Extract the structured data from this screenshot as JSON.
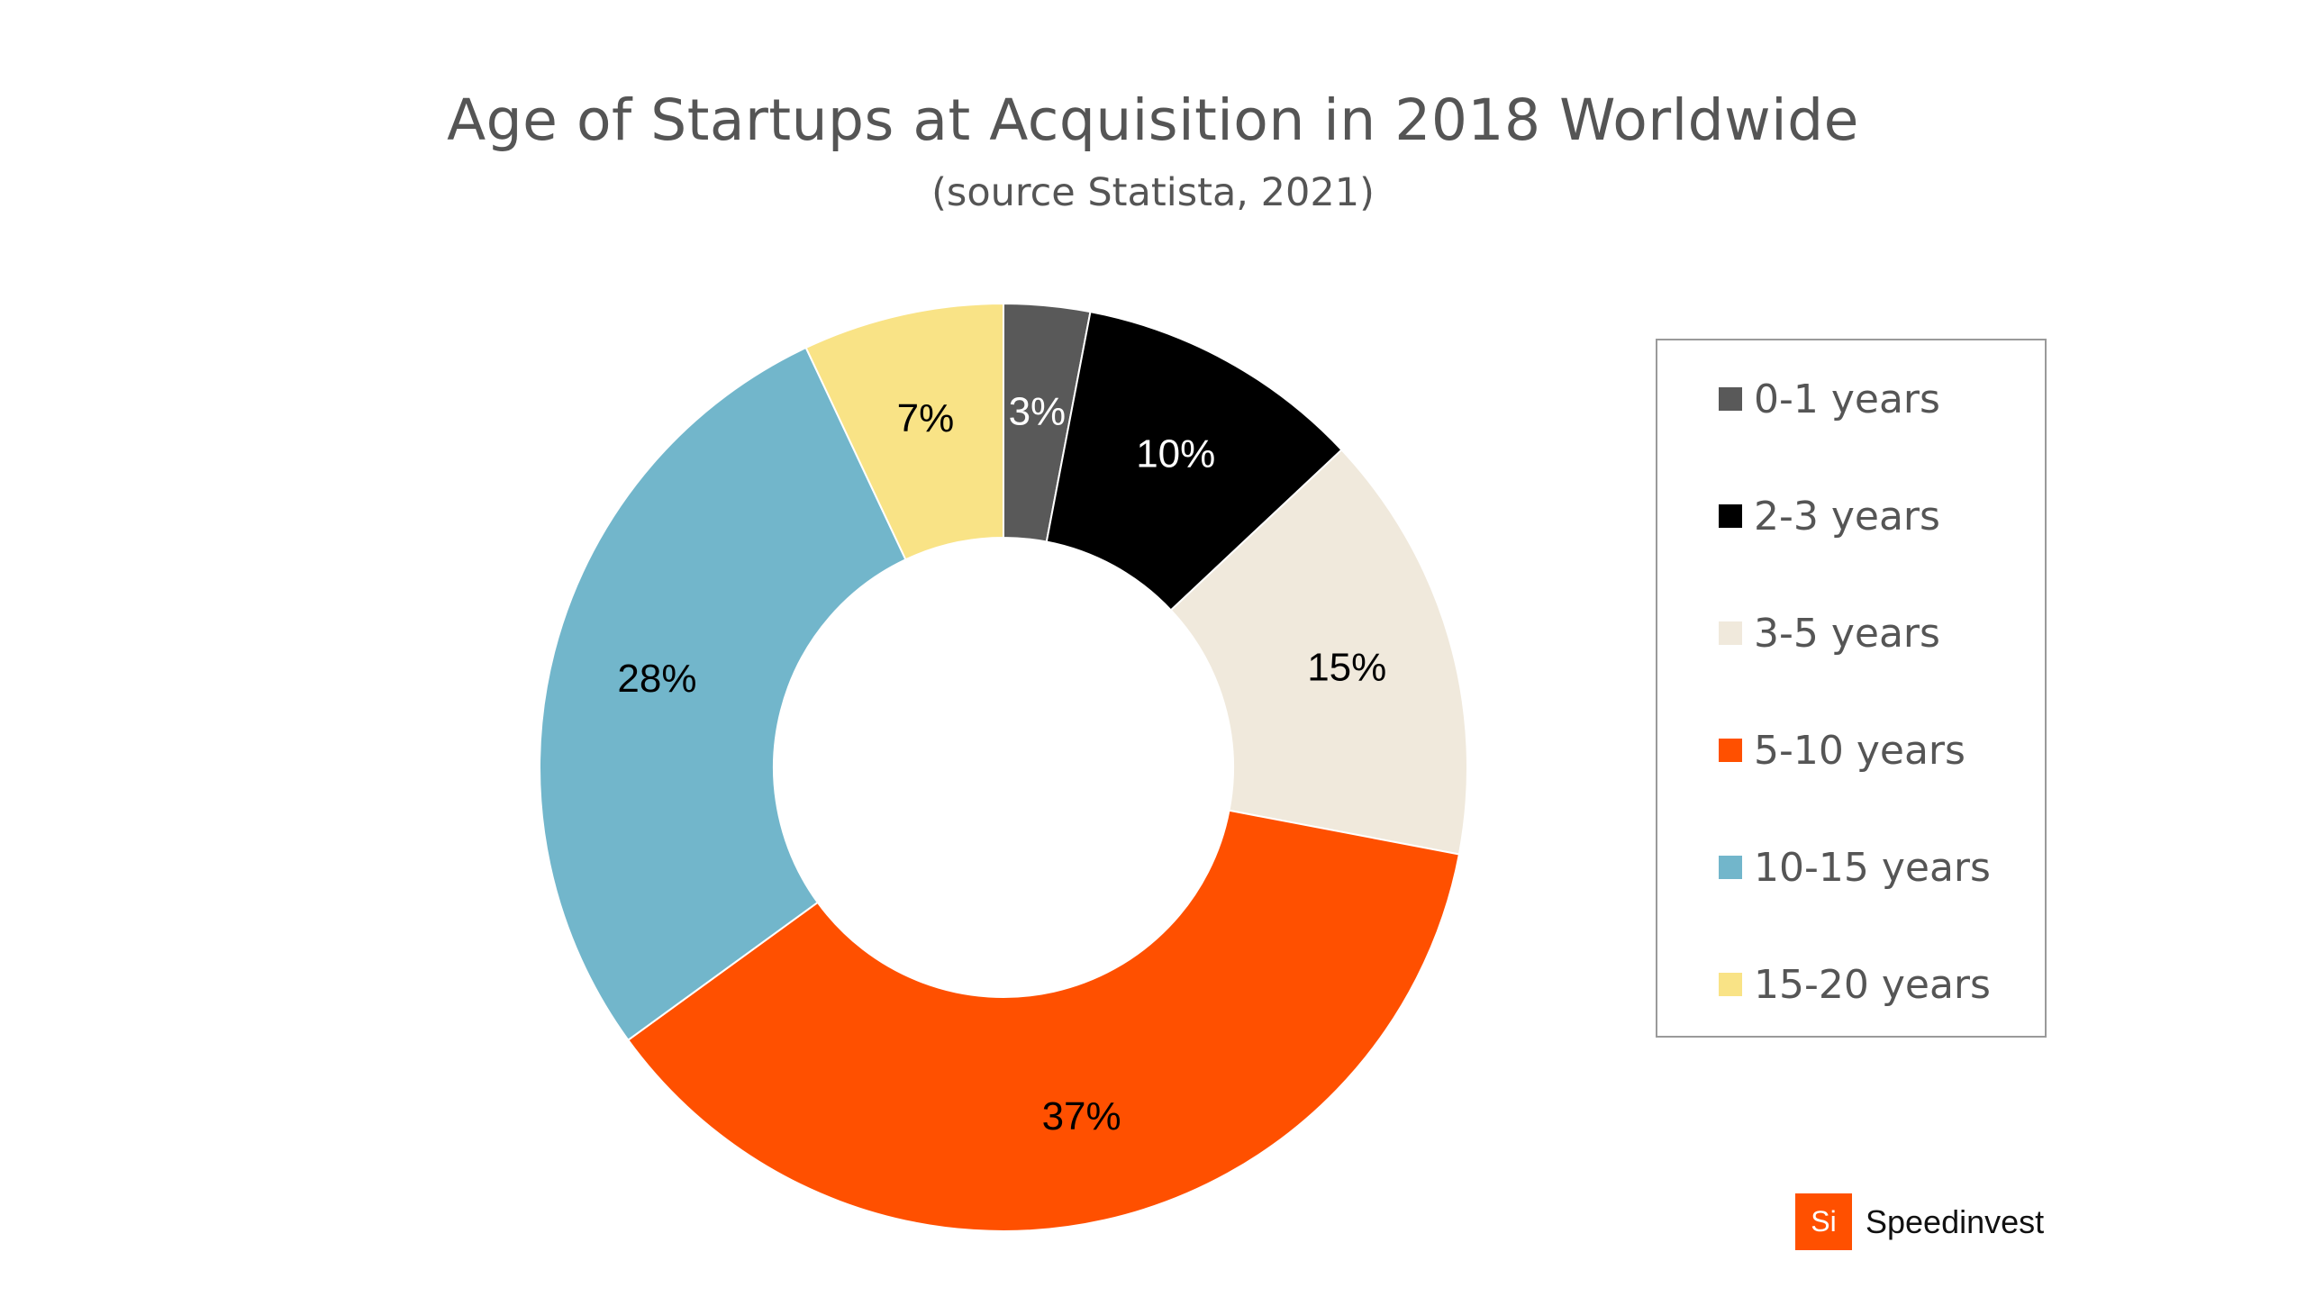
{
  "chart_data": {
    "type": "pie",
    "variant": "donut",
    "title": "Age of Startups at Acquisition in 2018 Worldwide",
    "subtitle": "(source Statista, 2021)",
    "categories": [
      "0-1 years",
      "2-3 years",
      "3-5 years",
      "5-10 years",
      "10-15 years",
      "15-20 years"
    ],
    "values": [
      3,
      10,
      15,
      37,
      28,
      7
    ],
    "data_labels": [
      "3%",
      "10%",
      "15%",
      "37%",
      "28%",
      "7%"
    ],
    "colors": [
      "#595959",
      "#000000",
      "#f0e9dc",
      "#ff5000",
      "#72b6cb",
      "#f9e386"
    ],
    "label_colors": [
      "#ffffff",
      "#ffffff",
      "#000000",
      "#000000",
      "#000000",
      "#000000"
    ],
    "legend_position": "right",
    "start": "top",
    "direction": "clockwise"
  },
  "brand": {
    "logo_text": "Si",
    "name": "Speedinvest",
    "color": "#ff5000"
  }
}
